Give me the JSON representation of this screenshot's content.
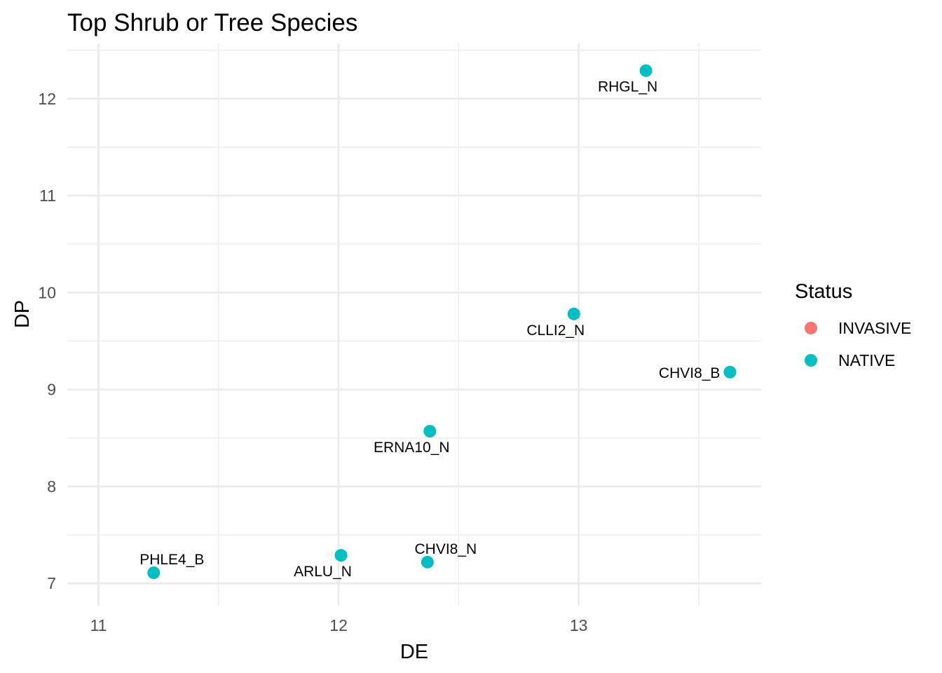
{
  "chart_data": {
    "type": "scatter",
    "title": "Top Shrub or Tree Species",
    "xlabel": "DE",
    "ylabel": "DP",
    "xlim": [
      10.87,
      13.76
    ],
    "ylim": [
      6.77,
      12.57
    ],
    "x_ticks": [
      11,
      12,
      13
    ],
    "y_ticks": [
      7,
      8,
      9,
      10,
      11,
      12
    ],
    "x_minor_ticks": [
      11.5,
      12.5,
      13.5
    ],
    "y_minor_ticks": [
      7.5,
      8.5,
      9.5,
      10.5,
      11.5,
      12.5
    ],
    "grid": true,
    "legend": {
      "title": "Status",
      "position": "right",
      "entries": [
        {
          "label": "INVASIVE",
          "color": "#F8766D"
        },
        {
          "label": "NATIVE",
          "color": "#00BFC4"
        }
      ]
    },
    "points": [
      {
        "label": "RHGL_N",
        "x": 13.28,
        "y": 12.29,
        "status": "NATIVE",
        "label_pos": "below"
      },
      {
        "label": "CLLI2_N",
        "x": 12.98,
        "y": 9.78,
        "status": "NATIVE",
        "label_pos": "below"
      },
      {
        "label": "CHVI8_B",
        "x": 13.63,
        "y": 9.18,
        "status": "NATIVE",
        "label_pos": "left"
      },
      {
        "label": "ERNA10_N",
        "x": 12.38,
        "y": 8.57,
        "status": "NATIVE",
        "label_pos": "below"
      },
      {
        "label": "PHLE4_B",
        "x": 11.23,
        "y": 7.11,
        "status": "NATIVE",
        "label_pos": "above"
      },
      {
        "label": "ARLU_N",
        "x": 12.01,
        "y": 7.29,
        "status": "NATIVE",
        "label_pos": "below"
      },
      {
        "label": "CHVI8_N",
        "x": 12.37,
        "y": 7.22,
        "status": "NATIVE",
        "label_pos": "above"
      }
    ]
  }
}
